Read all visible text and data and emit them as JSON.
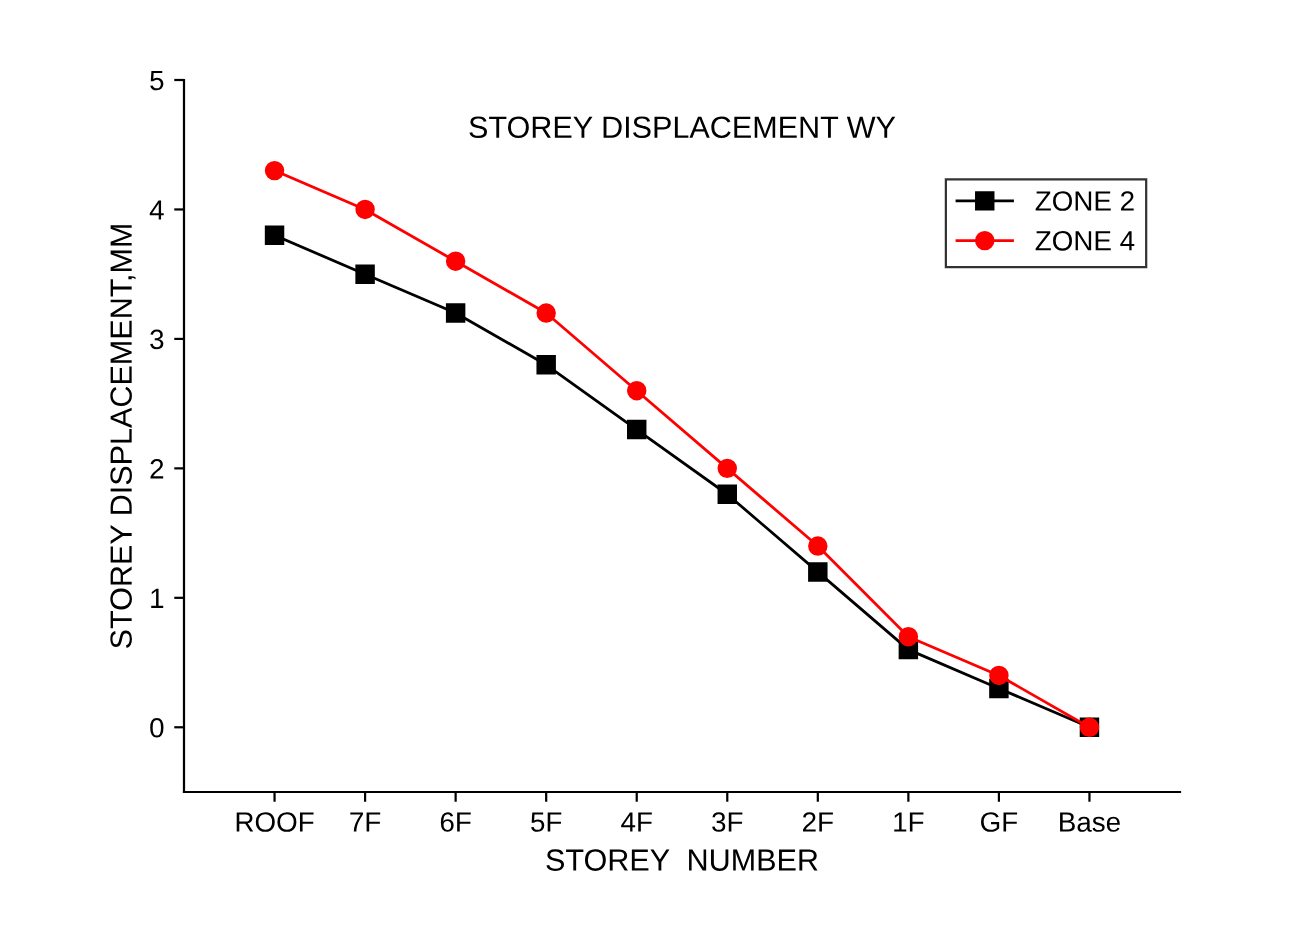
{
  "chart_data": {
    "type": "line",
    "title": "STOREY DISPLACEMENT WY",
    "xlabel": "STOREY  NUMBER",
    "ylabel": "STOREY DISPLACEMENT,MM",
    "categories": [
      "ROOF",
      "7F",
      "6F",
      "5F",
      "4F",
      "3F",
      "2F",
      "1F",
      "GF",
      "Base"
    ],
    "series": [
      {
        "name": "ZONE 2",
        "color": "#000000",
        "marker": "square",
        "values": [
          3.8,
          3.5,
          3.2,
          2.8,
          2.3,
          1.8,
          1.2,
          0.6,
          0.3,
          0
        ]
      },
      {
        "name": "ZONE 4",
        "color": "#ff0000",
        "marker": "circle",
        "values": [
          4.3,
          4.0,
          3.6,
          3.2,
          2.6,
          2.0,
          1.4,
          0.7,
          0.4,
          0
        ]
      }
    ],
    "ylim": [
      -0.5,
      5
    ],
    "yticks": [
      0,
      1,
      2,
      3,
      4,
      5
    ],
    "grid": false,
    "legend": "top right",
    "line_style": "solid"
  }
}
